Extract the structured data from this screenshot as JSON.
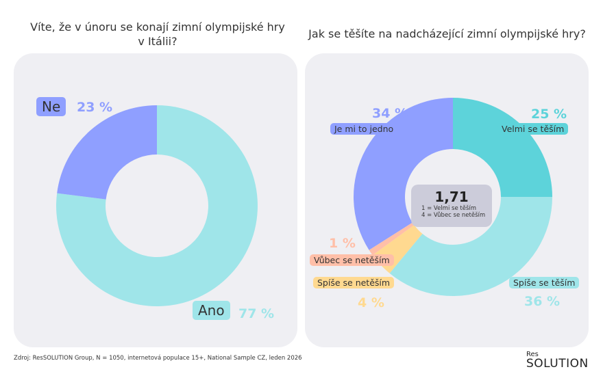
{
  "chart_data": [
    {
      "type": "pie",
      "donut": true,
      "title": "Víte, že v únoru se konají zimní olympijské hry v Itálii?",
      "slices": [
        {
          "label": "Ano",
          "value": 77,
          "display": "77 %",
          "color": "#9FE5E9"
        },
        {
          "label": "Ne",
          "value": 23,
          "display": "23 %",
          "color": "#8F9FFF"
        }
      ]
    },
    {
      "type": "pie",
      "donut": true,
      "title": "Jak se těšíte na nadcházející zimní olympijské hry?",
      "slices": [
        {
          "label": "Velmi se těším",
          "value": 25,
          "display": "25 %",
          "color": "#5DD3DA"
        },
        {
          "label": "Spíše se těším",
          "value": 36,
          "display": "36 %",
          "color": "#9FE5E9"
        },
        {
          "label": "Spíše se netěším",
          "value": 4,
          "display": "4 %",
          "color": "#FFD990"
        },
        {
          "label": "Vůbec se netěším",
          "value": 1,
          "display": "1 %",
          "color": "#FFBFA8"
        },
        {
          "label": "Je mi to jedno",
          "value": 34,
          "display": "34 %",
          "color": "#8F9FFF"
        }
      ],
      "center": {
        "value": "1,71",
        "note1": "1 = Velmi se těším",
        "note2": "4 = Vůbec se netěším"
      }
    }
  ],
  "source": "Zdroj: ResSOLUTION Group, N = 1050, internetová populace 15+, National Sample CZ, leden 2026",
  "logo": {
    "top": "Res",
    "main": "SOLUTION"
  }
}
